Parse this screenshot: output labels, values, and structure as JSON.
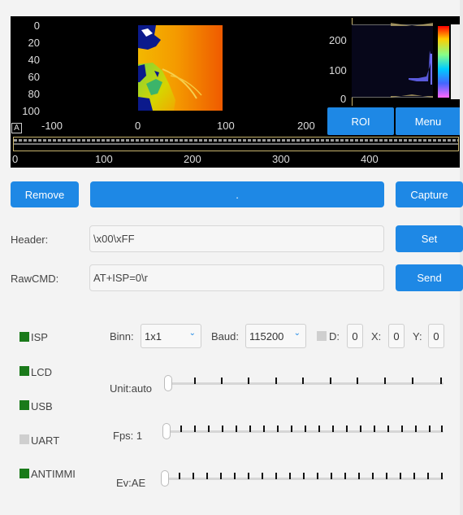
{
  "plot": {
    "y_ticks": [
      "0",
      "20",
      "40",
      "60",
      "80",
      "100"
    ],
    "x_ticks": [
      "-100",
      "0",
      "100",
      "200"
    ],
    "hist_y_ticks": [
      "200",
      "100",
      "0"
    ],
    "axis_badge": "A",
    "timeline_ticks": [
      "0",
      "100",
      "200",
      "300",
      "400"
    ],
    "colors": {
      "background": "#000000",
      "accent": "#c8b46e"
    }
  },
  "overlay_buttons": {
    "roi": "ROI",
    "menu": "Menu"
  },
  "toolbar": {
    "remove": "Remove",
    "center": ".",
    "capture": "Capture"
  },
  "header": {
    "label": "Header:",
    "value": "\\x00\\xFF",
    "set": "Set"
  },
  "rawcmd": {
    "label": "RawCMD:",
    "value": "AT+ISP=0\\r",
    "send": "Send"
  },
  "checks": [
    {
      "label": "ISP",
      "checked": true
    },
    {
      "label": "LCD",
      "checked": true
    },
    {
      "label": "USB",
      "checked": true
    },
    {
      "label": "UART",
      "checked": false
    },
    {
      "label": "ANTIMMI",
      "checked": true
    }
  ],
  "controls": {
    "binn_label": "Binn:",
    "binn_value": "1x1",
    "baud_label": "Baud:",
    "baud_value": "115200",
    "d_label": "D:",
    "d_value": "0",
    "x_label": "X:",
    "x_value": "0",
    "y_label": "Y:",
    "y_value": "0"
  },
  "sliders": {
    "unit": "Unit:auto",
    "fps": "Fps: 1",
    "ev": "Ev:AE"
  },
  "colors": {
    "accent": "#1e88e5",
    "checked": "#1a7a1a",
    "unchecked": "#cfcfcf"
  }
}
